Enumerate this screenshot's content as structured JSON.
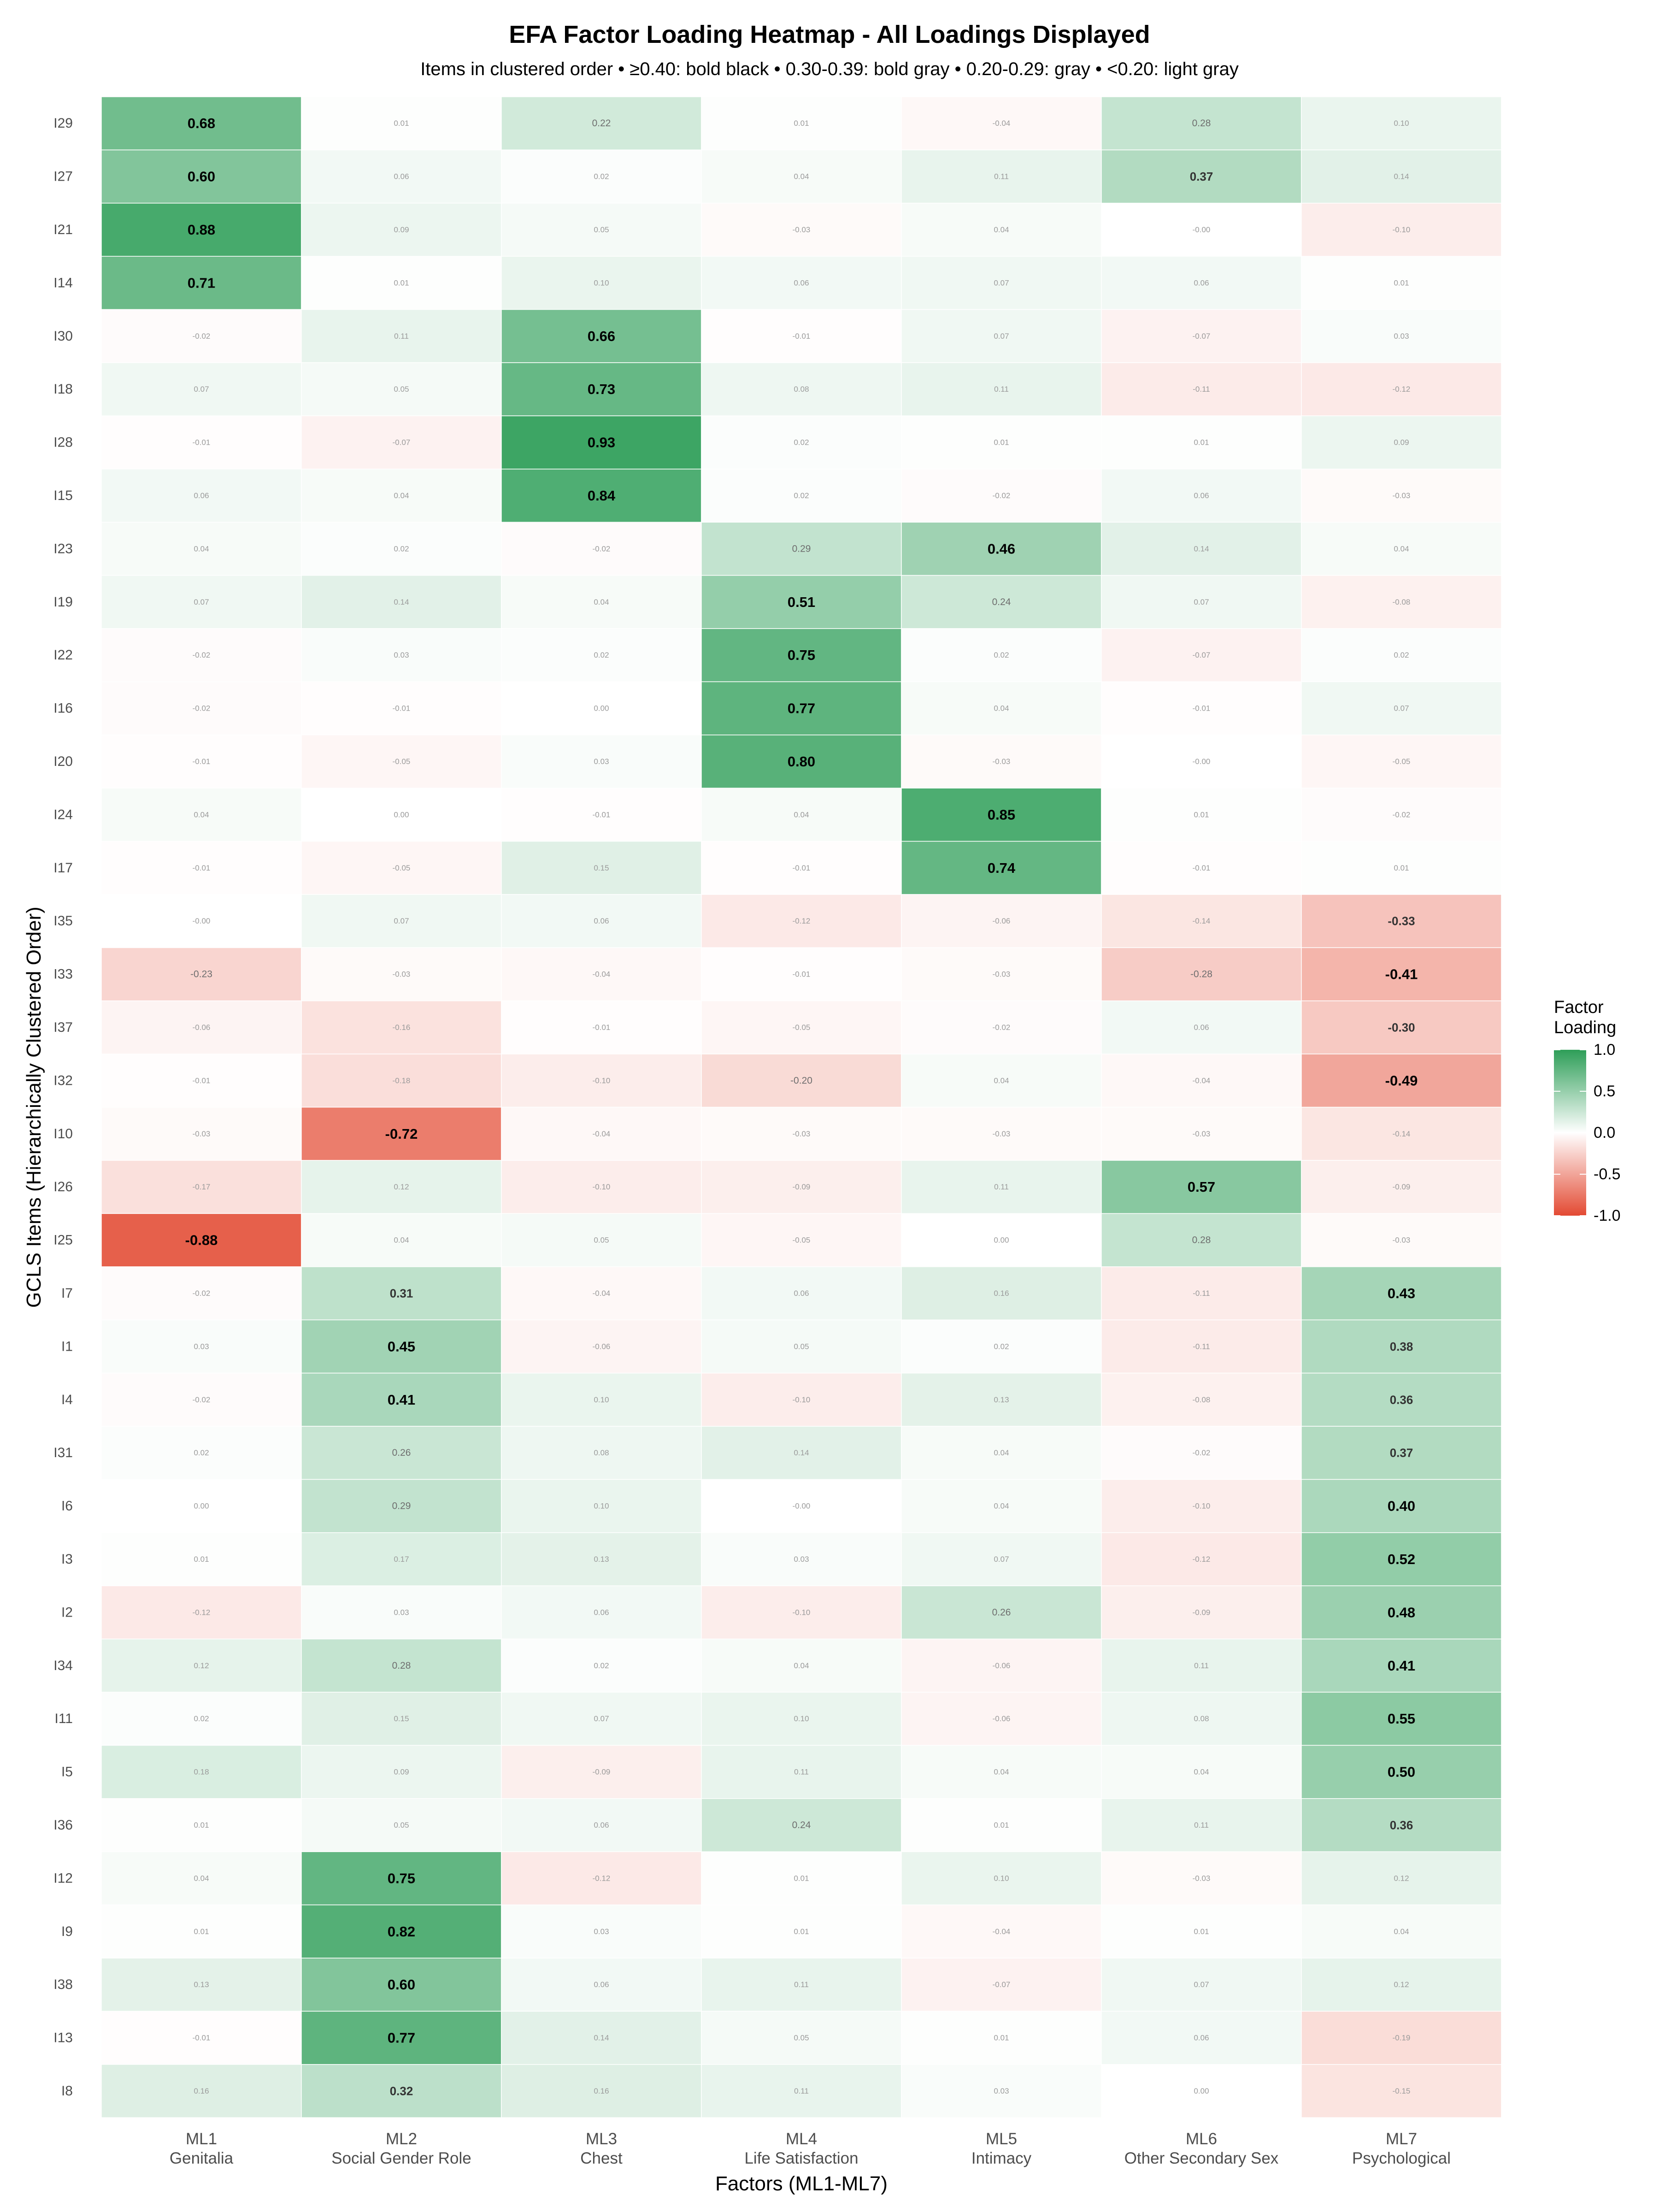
{
  "chart_data": {
    "type": "heatmap",
    "title": "EFA Factor Loading Heatmap - All Loadings Displayed",
    "subtitle": "Items in clustered order • ≥0.40: bold black • 0.30-0.39: bold gray • 0.20-0.29: gray • <0.20: light gray",
    "xlabel": "Factors (ML1-ML7)",
    "ylabel": "GCLS Items (Hierarchically Clustered Order)",
    "factors": [
      {
        "code": "ML1",
        "name": "Genitalia"
      },
      {
        "code": "ML2",
        "name": "Social Gender Role"
      },
      {
        "code": "ML3",
        "name": "Chest"
      },
      {
        "code": "ML4",
        "name": "Life Satisfaction"
      },
      {
        "code": "ML5",
        "name": "Intimacy"
      },
      {
        "code": "ML6",
        "name": "Other Secondary Sex"
      },
      {
        "code": "ML7",
        "name": "Psychological"
      }
    ],
    "items": [
      "I29",
      "I27",
      "I21",
      "I14",
      "I30",
      "I18",
      "I28",
      "I15",
      "I23",
      "I19",
      "I22",
      "I16",
      "I20",
      "I24",
      "I17",
      "I35",
      "I33",
      "I37",
      "I32",
      "I10",
      "I26",
      "I25",
      "I7",
      "I1",
      "I4",
      "I31",
      "I6",
      "I3",
      "I2",
      "I34",
      "I11",
      "I5",
      "I36",
      "I12",
      "I9",
      "I38",
      "I13",
      "I8"
    ],
    "labels": [
      [
        "0.68",
        "0.01",
        "0.22",
        "0.01",
        "-0.04",
        "0.28",
        "0.10"
      ],
      [
        "0.60",
        "0.06",
        "0.02",
        "0.04",
        "0.11",
        "0.37",
        "0.14"
      ],
      [
        "0.88",
        "0.09",
        "0.05",
        "-0.03",
        "0.04",
        "-0.00",
        "-0.10"
      ],
      [
        "0.71",
        "0.01",
        "0.10",
        "0.06",
        "0.07",
        "0.06",
        "0.01"
      ],
      [
        "-0.02",
        "0.11",
        "0.66",
        "-0.01",
        "0.07",
        "-0.07",
        "0.03"
      ],
      [
        "0.07",
        "0.05",
        "0.73",
        "0.08",
        "0.11",
        "-0.11",
        "-0.12"
      ],
      [
        "-0.01",
        "-0.07",
        "0.93",
        "0.02",
        "0.01",
        "0.01",
        "0.09"
      ],
      [
        "0.06",
        "0.04",
        "0.84",
        "0.02",
        "-0.02",
        "0.06",
        "-0.03"
      ],
      [
        "0.04",
        "0.02",
        "-0.02",
        "0.29",
        "0.46",
        "0.14",
        "0.04"
      ],
      [
        "0.07",
        "0.14",
        "0.04",
        "0.51",
        "0.24",
        "0.07",
        "-0.08"
      ],
      [
        "-0.02",
        "0.03",
        "0.02",
        "0.75",
        "0.02",
        "-0.07",
        "0.02"
      ],
      [
        "-0.02",
        "-0.01",
        "0.00",
        "0.77",
        "0.04",
        "-0.01",
        "0.07"
      ],
      [
        "-0.01",
        "-0.05",
        "0.03",
        "0.80",
        "-0.03",
        "-0.00",
        "-0.05"
      ],
      [
        "0.04",
        "0.00",
        "-0.01",
        "0.04",
        "0.85",
        "0.01",
        "-0.02"
      ],
      [
        "-0.01",
        "-0.05",
        "0.15",
        "-0.01",
        "0.74",
        "-0.01",
        "0.01"
      ],
      [
        "-0.00",
        "0.07",
        "0.06",
        "-0.12",
        "-0.06",
        "-0.14",
        "-0.33"
      ],
      [
        "-0.23",
        "-0.03",
        "-0.04",
        "-0.01",
        "-0.03",
        "-0.28",
        "-0.41"
      ],
      [
        "-0.06",
        "-0.16",
        "-0.01",
        "-0.05",
        "-0.02",
        "0.06",
        "-0.30"
      ],
      [
        "-0.01",
        "-0.18",
        "-0.10",
        "-0.20",
        "0.04",
        "-0.04",
        "-0.49"
      ],
      [
        "-0.03",
        "-0.72",
        "-0.04",
        "-0.03",
        "-0.03",
        "-0.03",
        "-0.14"
      ],
      [
        "-0.17",
        "0.12",
        "-0.10",
        "-0.09",
        "0.11",
        "0.57",
        "-0.09"
      ],
      [
        "-0.88",
        "0.04",
        "0.05",
        "-0.05",
        "0.00",
        "0.28",
        "-0.03"
      ],
      [
        "-0.02",
        "0.31",
        "-0.04",
        "0.06",
        "0.16",
        "-0.11",
        "0.43"
      ],
      [
        "0.03",
        "0.45",
        "-0.06",
        "0.05",
        "0.02",
        "-0.11",
        "0.38"
      ],
      [
        "-0.02",
        "0.41",
        "0.10",
        "-0.10",
        "0.13",
        "-0.08",
        "0.36"
      ],
      [
        "0.02",
        "0.26",
        "0.08",
        "0.14",
        "0.04",
        "-0.02",
        "0.37"
      ],
      [
        "0.00",
        "0.29",
        "0.10",
        "-0.00",
        "0.04",
        "-0.10",
        "0.40"
      ],
      [
        "0.01",
        "0.17",
        "0.13",
        "0.03",
        "0.07",
        "-0.12",
        "0.52"
      ],
      [
        "-0.12",
        "0.03",
        "0.06",
        "-0.10",
        "0.26",
        "-0.09",
        "0.48"
      ],
      [
        "0.12",
        "0.28",
        "0.02",
        "0.04",
        "-0.06",
        "0.11",
        "0.41"
      ],
      [
        "0.02",
        "0.15",
        "0.07",
        "0.10",
        "-0.06",
        "0.08",
        "0.55"
      ],
      [
        "0.18",
        "0.09",
        "-0.09",
        "0.11",
        "0.04",
        "0.04",
        "0.50"
      ],
      [
        "0.01",
        "0.05",
        "0.06",
        "0.24",
        "0.01",
        "0.11",
        "0.36"
      ],
      [
        "0.04",
        "0.75",
        "-0.12",
        "0.01",
        "0.10",
        "-0.03",
        "0.12"
      ],
      [
        "0.01",
        "0.82",
        "0.03",
        "0.01",
        "-0.04",
        "0.01",
        "0.04"
      ],
      [
        "0.13",
        "0.60",
        "0.06",
        "0.11",
        "-0.07",
        "0.07",
        "0.12"
      ],
      [
        "-0.01",
        "0.77",
        "0.14",
        "0.05",
        "0.01",
        "0.06",
        "-0.19"
      ],
      [
        "0.16",
        "0.32",
        "0.16",
        "0.11",
        "0.03",
        "0.00",
        "-0.15"
      ]
    ],
    "legend": {
      "title": [
        "Factor",
        "Loading"
      ],
      "ticks": [
        "1.0",
        "0.5",
        "0.0",
        "-0.5",
        "-1.0"
      ],
      "range": [
        -1,
        1
      ],
      "low_color": "#e34a33",
      "mid_color": "#ffffff",
      "high_color": "#2e9e58",
      "placement": "right"
    },
    "grid": false
  }
}
